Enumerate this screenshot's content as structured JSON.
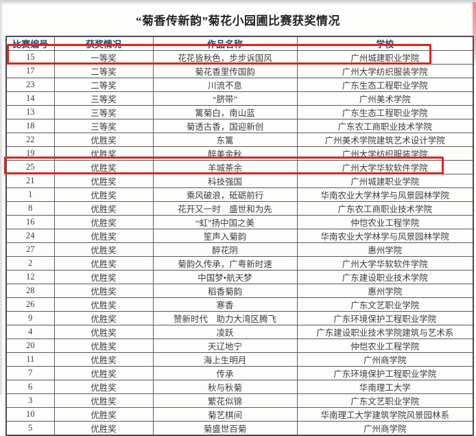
{
  "page": {
    "title": "“菊香传新韵”菊花小园圃比赛获奖情况"
  },
  "table": {
    "columns": [
      "比赛编号",
      "获奖情况",
      "作品名称",
      "学校"
    ],
    "rows": [
      {
        "id": "15",
        "award": "一等奖",
        "work": "花花皆秋色，步步诉国风",
        "school": "广州城建职业学院"
      },
      {
        "id": "17",
        "award": "二等奖",
        "work": "菊花香里传国韵",
        "school": "广州大学纺织服装学院"
      },
      {
        "id": "23",
        "award": "二等奖",
        "work": "川流不息",
        "school": "广东生态工程职业学院"
      },
      {
        "id": "14",
        "award": "三等奖",
        "work": "“脐带”",
        "school": "广州美术学院"
      },
      {
        "id": "13",
        "award": "三等奖",
        "work": "篱菊白，南山蓝",
        "school": "广东生态工程职业学院"
      },
      {
        "id": "18",
        "award": "三等奖",
        "work": "菊透古香，国迎新创",
        "school": "广东农工商职业技术学院"
      },
      {
        "id": "22",
        "award": "优胜奖",
        "work": "东篱",
        "school": "广州美术学院建筑艺术设计学院"
      },
      {
        "id": "19",
        "award": "优胜奖",
        "work": "醉美金秋",
        "school": "广州大学纺织服装学院"
      },
      {
        "id": "25",
        "award": "优胜奖",
        "work": "羊城茶余",
        "school": "广州大学华软软件学院"
      },
      {
        "id": "21",
        "award": "优胜奖",
        "work": "科技强国",
        "school": "广州城建职业学院"
      },
      {
        "id": "1",
        "award": "优胜奖",
        "work": "乘风破浪，砥砺前行",
        "school": "华南农业大学林学与风景园林学院"
      },
      {
        "id": "8",
        "award": "优胜奖",
        "work": "花开又一时　盛世和为先",
        "school": "广东农工商职业技术学院"
      },
      {
        "id": "16",
        "award": "优胜奖",
        "work": "“虹”扬中国之美",
        "school": "仲恺农业工程学院"
      },
      {
        "id": "24",
        "award": "优胜奖",
        "work": "笙声入菊韵",
        "school": "华南农业大学林学与风景园林学院"
      },
      {
        "id": "27",
        "award": "优胜奖",
        "work": "醉花阴",
        "school": "惠州学院"
      },
      {
        "id": "2",
        "award": "优胜奖",
        "work": "菊韵久传承，广粤新时速",
        "school": "广州大学华软软件学院"
      },
      {
        "id": "12",
        "award": "优胜奖",
        "work": "中国梦•航天梦",
        "school": "广东建设职业技术学院"
      },
      {
        "id": "28",
        "award": "优胜奖",
        "work": "稻香菊韵",
        "school": "惠州学院"
      },
      {
        "id": "26",
        "award": "优胜奖",
        "work": "寒香",
        "school": "广东文艺职业学院"
      },
      {
        "id": "9",
        "award": "优胜奖",
        "work": "赞新时代　助力大湾区腾飞",
        "school": "广东环境保护工程职业学院"
      },
      {
        "id": "4",
        "award": "优胜奖",
        "work": "凌跃",
        "school": "广东建设职业技术学院建筑与艺术系"
      },
      {
        "id": "20",
        "award": "优胜奖",
        "work": "天辽地宁",
        "school": "仲恺农业工程学院"
      },
      {
        "id": "11",
        "award": "优胜奖",
        "work": "海上生明月",
        "school": "广州商学院"
      },
      {
        "id": "7",
        "award": "优胜奖",
        "work": "传承",
        "school": "广东环境保护工程职业学院"
      },
      {
        "id": "6",
        "award": "优胜奖",
        "work": "秋与秋菊",
        "school": "华南理工大学"
      },
      {
        "id": "3",
        "award": "优胜奖",
        "work": "繁花似锦",
        "school": "广东文艺职业学院"
      },
      {
        "id": "10",
        "award": "优胜奖",
        "work": "菊艺棋间",
        "school": "华南理工大学建筑学院风景园林系"
      },
      {
        "id": "5",
        "award": "优胜奖",
        "work": "菊盛世百菊",
        "school": "广州商学院"
      }
    ],
    "highlighted_ids": [
      "15",
      "21"
    ]
  },
  "colors": {
    "header_text": "#27486b",
    "body_text": "#3c3c3c",
    "table_border": "#585858",
    "highlight_red": "#e32119"
  }
}
